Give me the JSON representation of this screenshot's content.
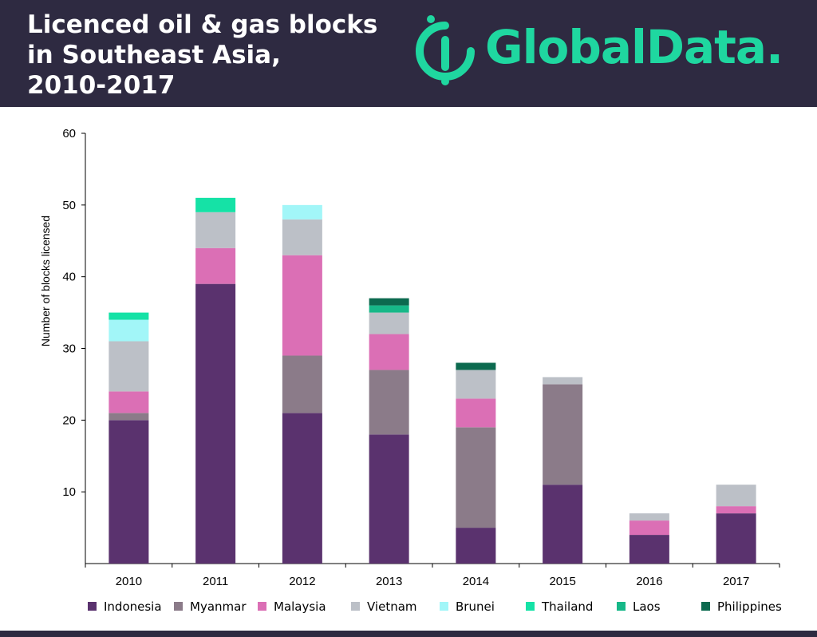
{
  "header": {
    "title_lines": [
      "Licenced oil & gas blocks",
      "in Southeast Asia,",
      "2010-2017"
    ],
    "logo_text": "GlobalData.",
    "background": "#2e2a41",
    "brand_color": "#1fd7a0"
  },
  "chart_data": {
    "type": "bar",
    "stacked": true,
    "categories": [
      "2010",
      "2011",
      "2012",
      "2013",
      "2014",
      "2015",
      "2016",
      "2017"
    ],
    "series": [
      {
        "name": "Indonesia",
        "color": "#5a326e",
        "values": [
          20,
          39,
          21,
          18,
          5,
          11,
          4,
          7
        ]
      },
      {
        "name": "Myanmar",
        "color": "#8b7b89",
        "values": [
          1,
          0,
          8,
          9,
          14,
          14,
          0,
          0
        ]
      },
      {
        "name": "Malaysia",
        "color": "#db6fb5",
        "values": [
          3,
          5,
          14,
          5,
          4,
          0,
          2,
          1
        ]
      },
      {
        "name": "Vietnam",
        "color": "#bcc0c7",
        "values": [
          7,
          5,
          5,
          3,
          4,
          1,
          1,
          3
        ]
      },
      {
        "name": "Brunei",
        "color": "#a2f6f8",
        "values": [
          3,
          0,
          2,
          0,
          0,
          0,
          0,
          0
        ]
      },
      {
        "name": "Thailand",
        "color": "#15e2a6",
        "values": [
          1,
          2,
          0,
          0,
          0,
          0,
          0,
          0
        ]
      },
      {
        "name": "Laos",
        "color": "#17b888",
        "values": [
          0,
          0,
          0,
          1,
          0,
          0,
          0,
          0
        ]
      },
      {
        "name": "Philippines",
        "color": "#0c6a4f",
        "values": [
          0,
          0,
          0,
          1,
          1,
          0,
          0,
          0
        ]
      }
    ],
    "ylabel": "Number of blocks licensed",
    "xlabel": "",
    "ylim": [
      0,
      60
    ],
    "yticks": [
      10,
      20,
      30,
      40,
      50,
      60
    ],
    "grid": false,
    "legend_position": "bottom"
  }
}
